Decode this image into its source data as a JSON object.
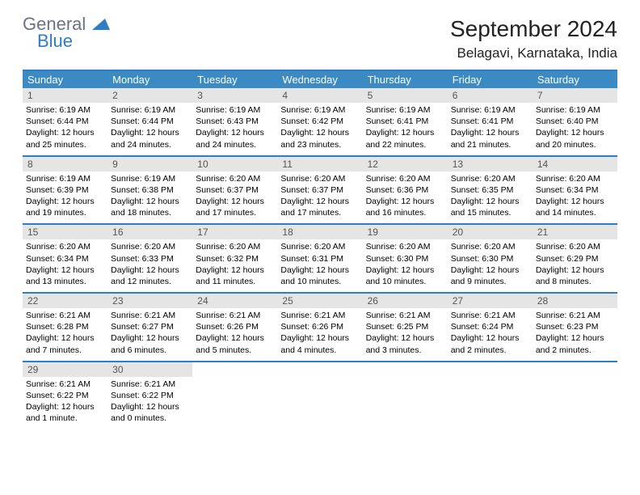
{
  "logo": {
    "general": "General",
    "blue": "Blue"
  },
  "title": "September 2024",
  "location": "Belagavi, Karnataka, India",
  "colors": {
    "header_bg": "#3b8ac4",
    "border": "#2f7dc4",
    "daynum_bg": "#e5e5e5",
    "logo_gray": "#6b7280",
    "logo_blue": "#2f7dc4"
  },
  "day_headers": [
    "Sunday",
    "Monday",
    "Tuesday",
    "Wednesday",
    "Thursday",
    "Friday",
    "Saturday"
  ],
  "weeks": [
    [
      {
        "n": "1",
        "sr": "Sunrise: 6:19 AM",
        "ss": "Sunset: 6:44 PM",
        "dl": "Daylight: 12 hours and 25 minutes."
      },
      {
        "n": "2",
        "sr": "Sunrise: 6:19 AM",
        "ss": "Sunset: 6:44 PM",
        "dl": "Daylight: 12 hours and 24 minutes."
      },
      {
        "n": "3",
        "sr": "Sunrise: 6:19 AM",
        "ss": "Sunset: 6:43 PM",
        "dl": "Daylight: 12 hours and 24 minutes."
      },
      {
        "n": "4",
        "sr": "Sunrise: 6:19 AM",
        "ss": "Sunset: 6:42 PM",
        "dl": "Daylight: 12 hours and 23 minutes."
      },
      {
        "n": "5",
        "sr": "Sunrise: 6:19 AM",
        "ss": "Sunset: 6:41 PM",
        "dl": "Daylight: 12 hours and 22 minutes."
      },
      {
        "n": "6",
        "sr": "Sunrise: 6:19 AM",
        "ss": "Sunset: 6:41 PM",
        "dl": "Daylight: 12 hours and 21 minutes."
      },
      {
        "n": "7",
        "sr": "Sunrise: 6:19 AM",
        "ss": "Sunset: 6:40 PM",
        "dl": "Daylight: 12 hours and 20 minutes."
      }
    ],
    [
      {
        "n": "8",
        "sr": "Sunrise: 6:19 AM",
        "ss": "Sunset: 6:39 PM",
        "dl": "Daylight: 12 hours and 19 minutes."
      },
      {
        "n": "9",
        "sr": "Sunrise: 6:19 AM",
        "ss": "Sunset: 6:38 PM",
        "dl": "Daylight: 12 hours and 18 minutes."
      },
      {
        "n": "10",
        "sr": "Sunrise: 6:20 AM",
        "ss": "Sunset: 6:37 PM",
        "dl": "Daylight: 12 hours and 17 minutes."
      },
      {
        "n": "11",
        "sr": "Sunrise: 6:20 AM",
        "ss": "Sunset: 6:37 PM",
        "dl": "Daylight: 12 hours and 17 minutes."
      },
      {
        "n": "12",
        "sr": "Sunrise: 6:20 AM",
        "ss": "Sunset: 6:36 PM",
        "dl": "Daylight: 12 hours and 16 minutes."
      },
      {
        "n": "13",
        "sr": "Sunrise: 6:20 AM",
        "ss": "Sunset: 6:35 PM",
        "dl": "Daylight: 12 hours and 15 minutes."
      },
      {
        "n": "14",
        "sr": "Sunrise: 6:20 AM",
        "ss": "Sunset: 6:34 PM",
        "dl": "Daylight: 12 hours and 14 minutes."
      }
    ],
    [
      {
        "n": "15",
        "sr": "Sunrise: 6:20 AM",
        "ss": "Sunset: 6:34 PM",
        "dl": "Daylight: 12 hours and 13 minutes."
      },
      {
        "n": "16",
        "sr": "Sunrise: 6:20 AM",
        "ss": "Sunset: 6:33 PM",
        "dl": "Daylight: 12 hours and 12 minutes."
      },
      {
        "n": "17",
        "sr": "Sunrise: 6:20 AM",
        "ss": "Sunset: 6:32 PM",
        "dl": "Daylight: 12 hours and 11 minutes."
      },
      {
        "n": "18",
        "sr": "Sunrise: 6:20 AM",
        "ss": "Sunset: 6:31 PM",
        "dl": "Daylight: 12 hours and 10 minutes."
      },
      {
        "n": "19",
        "sr": "Sunrise: 6:20 AM",
        "ss": "Sunset: 6:30 PM",
        "dl": "Daylight: 12 hours and 10 minutes."
      },
      {
        "n": "20",
        "sr": "Sunrise: 6:20 AM",
        "ss": "Sunset: 6:30 PM",
        "dl": "Daylight: 12 hours and 9 minutes."
      },
      {
        "n": "21",
        "sr": "Sunrise: 6:20 AM",
        "ss": "Sunset: 6:29 PM",
        "dl": "Daylight: 12 hours and 8 minutes."
      }
    ],
    [
      {
        "n": "22",
        "sr": "Sunrise: 6:21 AM",
        "ss": "Sunset: 6:28 PM",
        "dl": "Daylight: 12 hours and 7 minutes."
      },
      {
        "n": "23",
        "sr": "Sunrise: 6:21 AM",
        "ss": "Sunset: 6:27 PM",
        "dl": "Daylight: 12 hours and 6 minutes."
      },
      {
        "n": "24",
        "sr": "Sunrise: 6:21 AM",
        "ss": "Sunset: 6:26 PM",
        "dl": "Daylight: 12 hours and 5 minutes."
      },
      {
        "n": "25",
        "sr": "Sunrise: 6:21 AM",
        "ss": "Sunset: 6:26 PM",
        "dl": "Daylight: 12 hours and 4 minutes."
      },
      {
        "n": "26",
        "sr": "Sunrise: 6:21 AM",
        "ss": "Sunset: 6:25 PM",
        "dl": "Daylight: 12 hours and 3 minutes."
      },
      {
        "n": "27",
        "sr": "Sunrise: 6:21 AM",
        "ss": "Sunset: 6:24 PM",
        "dl": "Daylight: 12 hours and 2 minutes."
      },
      {
        "n": "28",
        "sr": "Sunrise: 6:21 AM",
        "ss": "Sunset: 6:23 PM",
        "dl": "Daylight: 12 hours and 2 minutes."
      }
    ],
    [
      {
        "n": "29",
        "sr": "Sunrise: 6:21 AM",
        "ss": "Sunset: 6:22 PM",
        "dl": "Daylight: 12 hours and 1 minute."
      },
      {
        "n": "30",
        "sr": "Sunrise: 6:21 AM",
        "ss": "Sunset: 6:22 PM",
        "dl": "Daylight: 12 hours and 0 minutes."
      },
      null,
      null,
      null,
      null,
      null
    ]
  ]
}
